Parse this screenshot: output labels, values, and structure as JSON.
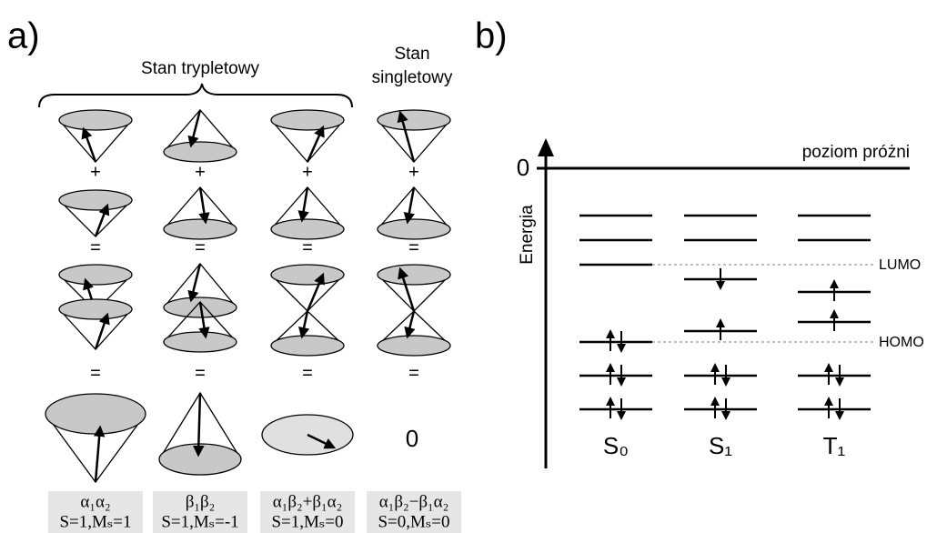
{
  "panel_a": {
    "label": "a)",
    "triplet_heading": "Stan trypletowy",
    "singlet_heading": [
      "Stan",
      "singletowy"
    ],
    "operators": [
      [
        "+",
        "+",
        "+",
        "+"
      ],
      [
        "=",
        "=",
        "=",
        "="
      ],
      [
        "=",
        "=",
        "=",
        "="
      ]
    ],
    "zero": "0",
    "states": [
      {
        "product": "α₁α₂",
        "quantum_numbers": "S=1,Mₛ=1"
      },
      {
        "product": "β₁β₂",
        "quantum_numbers": "S=1,Mₛ=-1"
      },
      {
        "product": "α₁β₂+β₁α₂",
        "quantum_numbers": "S=1,Mₛ=0"
      },
      {
        "product": "α₁β₂−β₁α₂",
        "quantum_numbers": "S=0,Mₛ=0"
      }
    ]
  },
  "panel_b": {
    "label": "b)",
    "zero": "0",
    "vacuum_level": "poziom próżni",
    "y_axis": "Energia",
    "lumo": "LUMO",
    "homo": "HOMO",
    "states": [
      "S₀",
      "S₁",
      "T₁"
    ]
  }
}
